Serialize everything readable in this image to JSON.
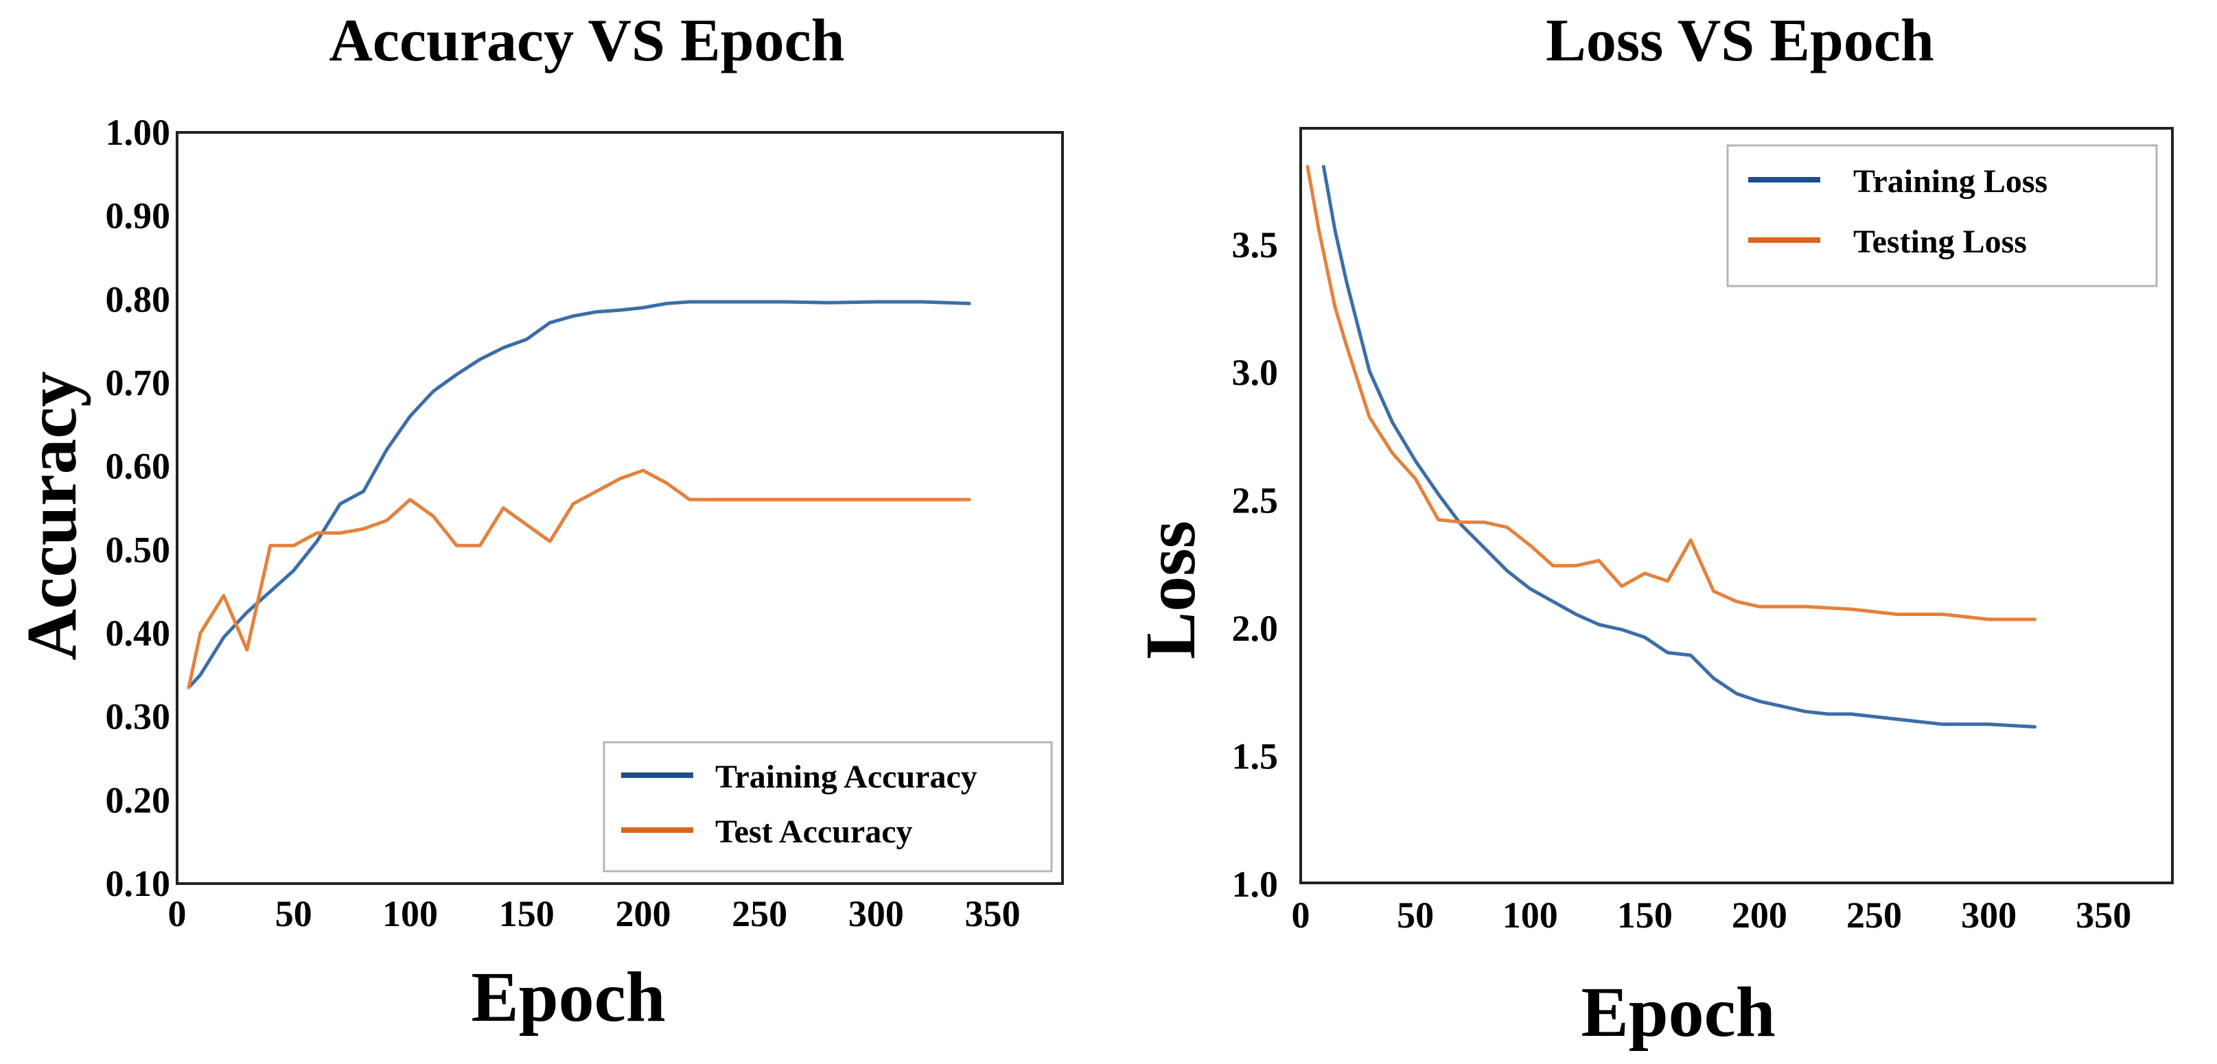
{
  "colors": {
    "training": "#3b6ea8",
    "testing": "#e3823d",
    "legend_training": "#1f4e89",
    "legend_testing": "#d9661f"
  },
  "chart_data": [
    {
      "type": "line",
      "title": "Accuracy VS Epoch",
      "xlabel": "Epoch",
      "ylabel": "Accuracy",
      "xlim": [
        0,
        380
      ],
      "ylim": [
        0.1,
        1.0
      ],
      "xticks": [
        "0",
        "50",
        "100",
        "150",
        "200",
        "250",
        "300",
        "350"
      ],
      "xtick_values": [
        0,
        50,
        100,
        150,
        200,
        250,
        300,
        350
      ],
      "yticks": [
        "0.10",
        "0.20",
        "0.30",
        "0.40",
        "0.50",
        "0.60",
        "0.70",
        "0.80",
        "0.90",
        "1.00"
      ],
      "ytick_values": [
        0.1,
        0.2,
        0.3,
        0.4,
        0.5,
        0.6,
        0.7,
        0.8,
        0.9,
        1.0
      ],
      "legend_position": "bottom-right",
      "series": [
        {
          "name": "Training Accuracy",
          "x": [
            5,
            10,
            20,
            30,
            40,
            50,
            60,
            70,
            80,
            90,
            100,
            110,
            120,
            130,
            140,
            150,
            160,
            170,
            180,
            190,
            200,
            210,
            220,
            230,
            240,
            260,
            280,
            300,
            320,
            340
          ],
          "y": [
            0.335,
            0.35,
            0.395,
            0.425,
            0.45,
            0.475,
            0.51,
            0.555,
            0.57,
            0.62,
            0.66,
            0.69,
            0.71,
            0.728,
            0.742,
            0.752,
            0.772,
            0.78,
            0.785,
            0.787,
            0.79,
            0.795,
            0.797,
            0.797,
            0.797,
            0.797,
            0.796,
            0.797,
            0.797,
            0.795
          ]
        },
        {
          "name": "Test Accuracy",
          "x": [
            5,
            10,
            20,
            30,
            40,
            45,
            50,
            60,
            70,
            80,
            90,
            100,
            110,
            120,
            130,
            140,
            150,
            160,
            170,
            180,
            190,
            200,
            210,
            220,
            230,
            240,
            260,
            280,
            300,
            320,
            340
          ],
          "y": [
            0.335,
            0.4,
            0.445,
            0.38,
            0.505,
            0.505,
            0.505,
            0.52,
            0.52,
            0.525,
            0.535,
            0.56,
            0.54,
            0.505,
            0.505,
            0.55,
            0.53,
            0.51,
            0.555,
            0.57,
            0.585,
            0.595,
            0.58,
            0.56,
            0.56,
            0.56,
            0.56,
            0.56,
            0.56,
            0.56,
            0.56
          ]
        }
      ]
    },
    {
      "type": "line",
      "title": "Loss VS Epoch",
      "xlabel": "Epoch",
      "ylabel": "Loss",
      "xlim": [
        0,
        380
      ],
      "ylim": [
        1.0,
        3.95
      ],
      "xticks": [
        "0",
        "50",
        "100",
        "150",
        "200",
        "250",
        "300",
        "350"
      ],
      "xtick_values": [
        0,
        50,
        100,
        150,
        200,
        250,
        300,
        350
      ],
      "yticks": [
        "1.0",
        "1.5",
        "2.0",
        "2.5",
        "3.0",
        "3.5"
      ],
      "ytick_values": [
        1.0,
        1.5,
        2.0,
        2.5,
        3.0,
        3.5
      ],
      "legend_position": "top-right",
      "series": [
        {
          "name": "Training Loss",
          "x": [
            10,
            15,
            20,
            30,
            40,
            50,
            60,
            70,
            80,
            90,
            100,
            110,
            120,
            130,
            140,
            150,
            160,
            170,
            180,
            190,
            200,
            210,
            220,
            230,
            240,
            260,
            280,
            300,
            320
          ],
          "y": [
            3.8,
            3.55,
            3.35,
            3.0,
            2.8,
            2.65,
            2.52,
            2.4,
            2.31,
            2.22,
            2.15,
            2.1,
            2.05,
            2.01,
            1.99,
            1.96,
            1.9,
            1.89,
            1.8,
            1.74,
            1.71,
            1.69,
            1.67,
            1.66,
            1.66,
            1.64,
            1.62,
            1.62,
            1.61
          ]
        },
        {
          "name": "Testing Loss",
          "x": [
            3,
            8,
            15,
            20,
            30,
            40,
            50,
            60,
            70,
            80,
            90,
            100,
            110,
            120,
            130,
            140,
            150,
            160,
            170,
            180,
            190,
            200,
            210,
            220,
            240,
            260,
            280,
            300,
            320
          ],
          "y": [
            3.8,
            3.55,
            3.25,
            3.1,
            2.82,
            2.68,
            2.58,
            2.42,
            2.41,
            2.41,
            2.39,
            2.32,
            2.24,
            2.24,
            2.26,
            2.16,
            2.21,
            2.18,
            2.34,
            2.14,
            2.1,
            2.08,
            2.08,
            2.08,
            2.07,
            2.05,
            2.05,
            2.03,
            2.03
          ]
        }
      ]
    }
  ]
}
